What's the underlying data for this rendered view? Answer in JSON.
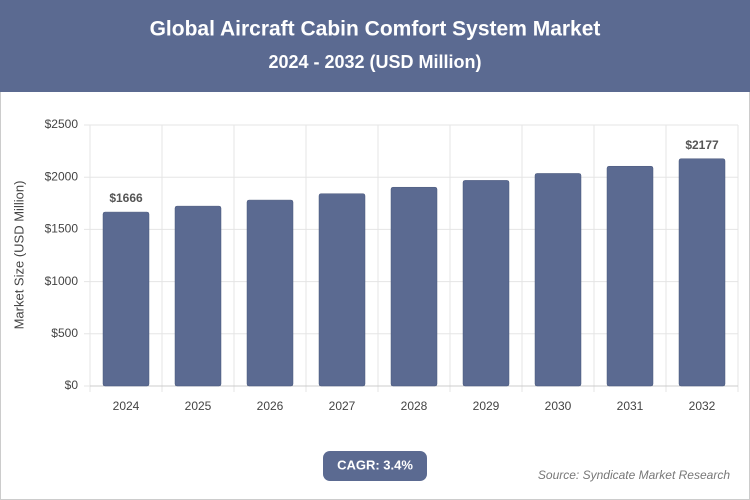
{
  "chart_data": {
    "type": "bar",
    "title": "Global Aircraft Cabin Comfort System Market",
    "subtitle": "2024 - 2032 (USD Million)",
    "y_label": "Market Size (USD Million)",
    "categories": [
      "2024",
      "2025",
      "2026",
      "2027",
      "2028",
      "2029",
      "2030",
      "2031",
      "2032"
    ],
    "values": [
      1666,
      1723,
      1781,
      1842,
      1904,
      1969,
      2036,
      2105,
      2177
    ],
    "value_labels": [
      "$1666",
      null,
      null,
      null,
      null,
      null,
      null,
      null,
      "$2177"
    ],
    "color": "#5b6a91",
    "ylim": [
      0,
      2500
    ],
    "yticks": [
      {
        "value": 0,
        "label": "$0"
      },
      {
        "value": 500,
        "label": "$500"
      },
      {
        "value": 1000,
        "label": "$1000"
      },
      {
        "value": 1500,
        "label": "$1500"
      },
      {
        "value": 2000,
        "label": "$2000"
      },
      {
        "value": 2500,
        "label": "$2500"
      }
    ],
    "grid": true,
    "cagr": "CAGR: 3.4%",
    "source": "Source: Syndicate Market Research"
  }
}
